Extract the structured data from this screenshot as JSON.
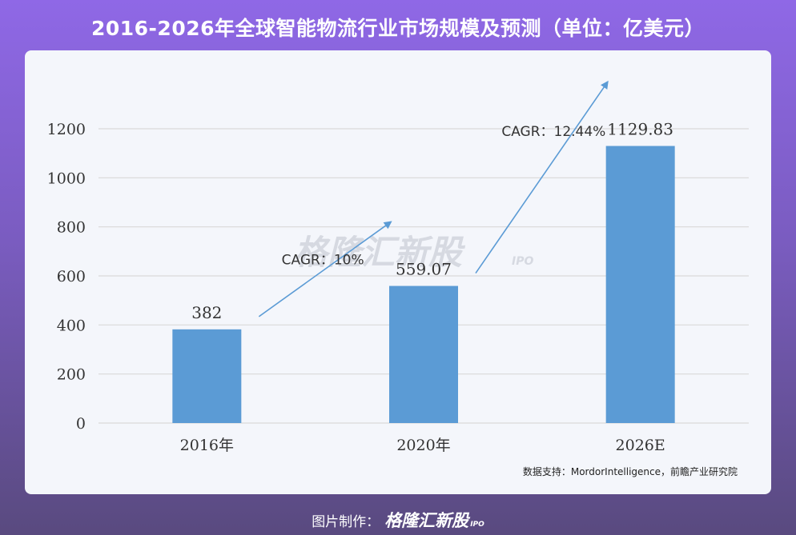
{
  "page": {
    "title": "2016-2026年全球智能物流行业市场规模及预测（单位：亿美元）",
    "source": "数据支持：MordorIntelligence，前瞻产业研究院",
    "footer_label": "图片制作：",
    "footer_brand": "格隆汇新股",
    "footer_brand_suffix": "IPO",
    "watermark": "格隆汇新股",
    "watermark_suffix": "IPO"
  },
  "colors": {
    "bar": "#5b9bd5",
    "arrow": "#5b9bd5",
    "grid": "#d9d9d9",
    "background_top": "#8f68e6",
    "background_bottom": "#594a7f"
  },
  "chart_data": {
    "type": "bar",
    "categories": [
      "2016年",
      "2020年",
      "2026E"
    ],
    "values": [
      382,
      559.07,
      1129.83
    ],
    "value_labels": [
      "382",
      "559.07",
      "1129.83"
    ],
    "ylim": [
      0,
      1200
    ],
    "yticks": [
      "0",
      "200",
      "400",
      "600",
      "800",
      "1000",
      "1200"
    ],
    "grid": true,
    "annotations": [
      {
        "text": "CAGR：10%",
        "from": "2016年",
        "to": "2020年"
      },
      {
        "text": "CAGR：12.44%",
        "from": "2020年",
        "to": "2026E"
      }
    ]
  }
}
